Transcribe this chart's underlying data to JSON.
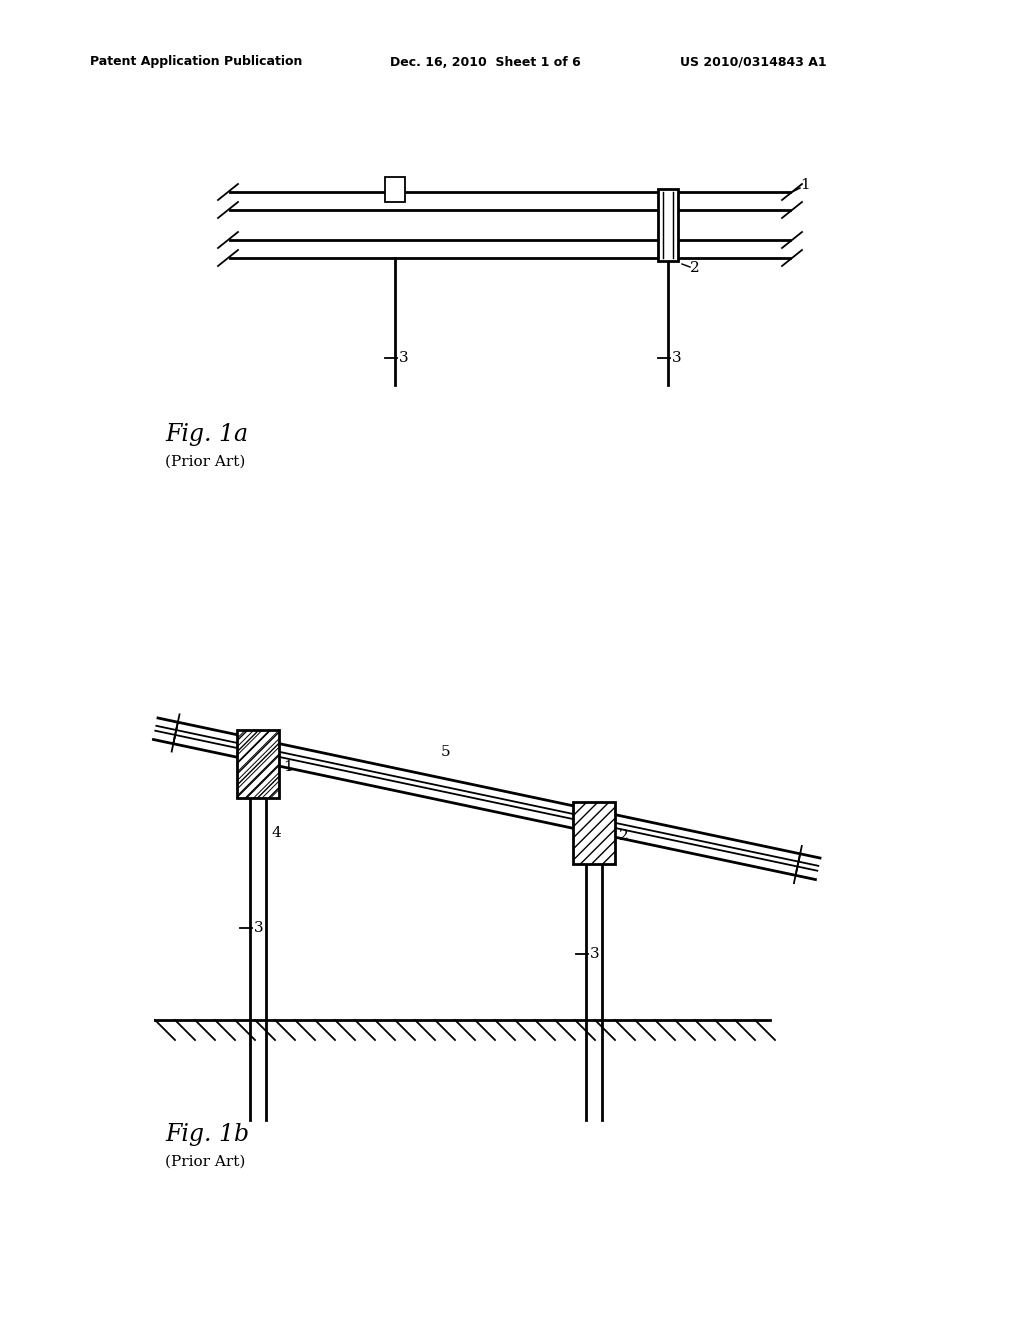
{
  "bg_color": "#ffffff",
  "header_left": "Patent Application Publication",
  "header_mid": "Dec. 16, 2010  Sheet 1 of 6",
  "header_right": "US 2010/0314843 A1",
  "fig1a_label": "Fig. 1a",
  "fig1a_prior_art": "(Prior Art)",
  "fig1b_label": "Fig. 1b",
  "fig1b_prior_art": "(Prior Art)",
  "line_color": "#000000",
  "lw": 1.3,
  "lw_thick": 2.0
}
